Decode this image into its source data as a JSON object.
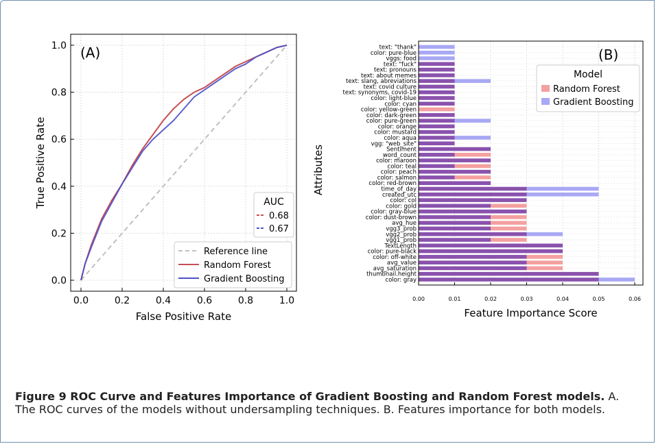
{
  "figure": {
    "caption_bold": "Figure 9 ROC Curve and Features Importance of Gradient Boosting and Random Forest models.",
    "caption_text": " A. The ROC curves of the models without undersampling techniques. B. Features importance for both models."
  },
  "colors": {
    "random_forest": "#c44e52",
    "gradient_boosting": "#4c50c8",
    "reference": "#c0c0c0",
    "rf_bar": "#f4a0a0",
    "gb_bar": "#a8a8f4",
    "overlap_bar": "#8a52ad"
  },
  "chart_data": [
    {
      "type": "line",
      "panel_label": "(A)",
      "xlabel": "False Positive Rate",
      "ylabel": "True Positive Rate",
      "xlim": [
        0,
        1
      ],
      "ylim": [
        0,
        1
      ],
      "xticks": [
        "0.0",
        "0.2",
        "0.4",
        "0.6",
        "0.8",
        "1.0"
      ],
      "yticks": [
        "0.0",
        "0.2",
        "0.4",
        "0.6",
        "0.8",
        "1.0"
      ],
      "grid": true,
      "auc_legend": {
        "title": "AUC",
        "entries": [
          "0.68",
          "0.67"
        ],
        "placement": "center-right"
      },
      "legend_placement": "bottom-right",
      "series": [
        {
          "name": "Reference line",
          "x": [
            0,
            1
          ],
          "y": [
            0,
            1
          ]
        },
        {
          "name": "Random Forest",
          "x": [
            0,
            0.02,
            0.05,
            0.1,
            0.15,
            0.2,
            0.25,
            0.3,
            0.35,
            0.4,
            0.45,
            0.5,
            0.55,
            0.6,
            0.65,
            0.7,
            0.75,
            0.8,
            0.85,
            0.9,
            0.95,
            1.0
          ],
          "y": [
            0,
            0.07,
            0.15,
            0.26,
            0.34,
            0.41,
            0.49,
            0.56,
            0.62,
            0.68,
            0.73,
            0.77,
            0.8,
            0.82,
            0.85,
            0.88,
            0.91,
            0.93,
            0.95,
            0.97,
            0.99,
            1.0
          ]
        },
        {
          "name": "Gradient Boosting",
          "x": [
            0,
            0.02,
            0.05,
            0.1,
            0.15,
            0.2,
            0.25,
            0.3,
            0.35,
            0.4,
            0.45,
            0.5,
            0.55,
            0.6,
            0.65,
            0.7,
            0.75,
            0.8,
            0.85,
            0.9,
            0.95,
            1.0
          ],
          "y": [
            0,
            0.07,
            0.14,
            0.25,
            0.33,
            0.41,
            0.48,
            0.55,
            0.6,
            0.64,
            0.68,
            0.73,
            0.78,
            0.81,
            0.84,
            0.87,
            0.9,
            0.92,
            0.95,
            0.97,
            0.99,
            1.0
          ]
        }
      ]
    },
    {
      "type": "bar",
      "orientation": "horizontal",
      "panel_label": "(B)",
      "xlabel": "Feature Importance Score",
      "ylabel": "Attributes",
      "xlim": [
        0,
        0.06
      ],
      "xticks": [
        "0.00",
        "0.01",
        "0.02",
        "0.03",
        "0.04",
        "0.05",
        "0.06"
      ],
      "grid": true,
      "legend": {
        "title": "Model",
        "placement": "top-right"
      },
      "categories": [
        "text: \"thank\"",
        "color: pure-blue",
        "vggs: food",
        "text: \"fuck\"",
        "text: pronouns",
        "text: about memes",
        "text: slang, abreviations",
        "text: covid culture",
        "text: synonyms, covid-19",
        "color: light-blue",
        "color: cyan",
        "color: yellow-green",
        "color: dark-green",
        "color: pure-green",
        "color: orange",
        "color: mustard",
        "color: aqua",
        "vgg: \"web_site\"",
        "Sentiment",
        "word_count",
        "color: maroon",
        "color: teal",
        "color: peach",
        "color: salmon",
        "color: red-brown",
        "time_of_day",
        "created_utc",
        "color: col",
        "color: gold",
        "color: gray-blue",
        "color: dust-brown",
        "avg_hue",
        "vgg3_prob",
        "vgg2_prob",
        "vgg1_prob",
        "TextLength",
        "color: pure-black",
        "color: off-white",
        "avg_value",
        "avg_saturation",
        "thumbnail.height",
        "color: gray"
      ],
      "series": [
        {
          "name": "Random Forest",
          "values": [
            0,
            0,
            0,
            0.01,
            0.01,
            0.01,
            0.01,
            0.01,
            0.01,
            0.01,
            0.01,
            0.01,
            0.01,
            0.01,
            0.01,
            0.01,
            0.01,
            0.01,
            0.02,
            0.02,
            0.02,
            0.02,
            0.02,
            0.02,
            0.02,
            0.03,
            0.03,
            0.03,
            0.03,
            0.03,
            0.03,
            0.03,
            0.03,
            0.03,
            0.03,
            0.04,
            0.04,
            0.04,
            0.04,
            0.04,
            0.05,
            0.05
          ]
        },
        {
          "name": "Gradient Boosting",
          "values": [
            0.01,
            0.01,
            0.01,
            0.01,
            0.01,
            0.01,
            0.02,
            0.01,
            0.01,
            0.01,
            0.01,
            0,
            0.01,
            0.02,
            0.01,
            0.01,
            0.02,
            0.01,
            0.02,
            0.01,
            0.02,
            0.01,
            0.02,
            0.01,
            0.02,
            0.05,
            0.05,
            0.03,
            0.02,
            0.03,
            0.02,
            0.02,
            0.02,
            0.04,
            0.02,
            0.04,
            0.04,
            0.03,
            0.03,
            0.03,
            0.05,
            0.06
          ]
        }
      ]
    }
  ]
}
